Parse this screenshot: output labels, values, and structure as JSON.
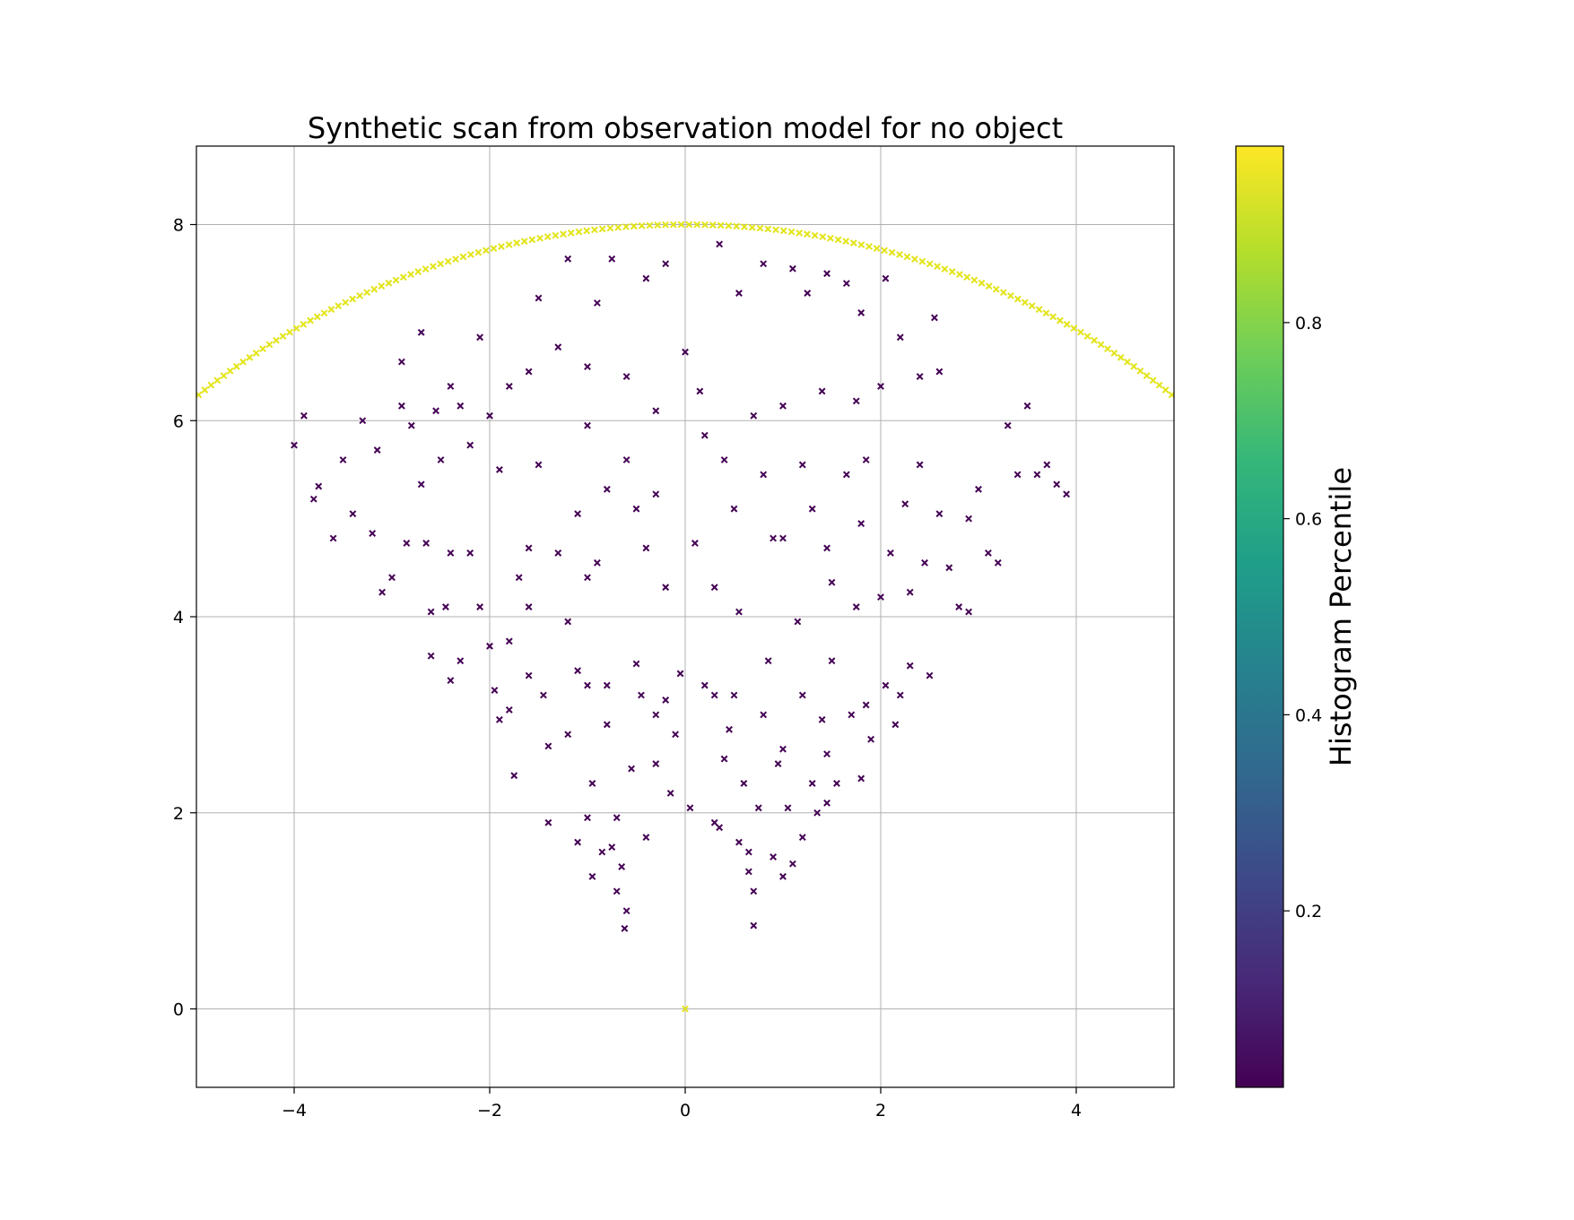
{
  "chart_data": {
    "type": "scatter",
    "title": "Synthetic scan from observation model for no object",
    "xlabel": "",
    "ylabel": "",
    "xlim": [
      -5,
      5
    ],
    "ylim": [
      -0.8,
      8.8
    ],
    "grid": true,
    "marker": "x",
    "x_ticks": [
      "−4",
      "−2",
      "0",
      "2",
      "4"
    ],
    "x_tick_values": [
      -4,
      -2,
      0,
      2,
      4
    ],
    "y_ticks": [
      "0",
      "2",
      "4",
      "6",
      "8"
    ],
    "y_tick_values": [
      0,
      2,
      4,
      6,
      8
    ],
    "colorbar": {
      "label": "Histogram Percentile",
      "colormap": "viridis",
      "range": [
        0.02,
        0.98
      ],
      "ticks": [
        "0.2",
        "0.4",
        "0.6",
        "0.8"
      ],
      "tick_values": [
        0.2,
        0.4,
        0.6,
        0.8
      ],
      "stops": [
        "#440154",
        "#482878",
        "#3e4989",
        "#31688e",
        "#26828e",
        "#1f9e89",
        "#35b779",
        "#6ece58",
        "#b5de2b",
        "#fde725"
      ]
    },
    "series": [
      {
        "description_color": "high percentile",
        "color": "#e3e419",
        "shape": "arc",
        "center": [
          0,
          0
        ],
        "radius": 8,
        "angle_start_deg": 44,
        "angle_end_deg": 136,
        "count": 160,
        "extra_points": [
          [
            0,
            0
          ]
        ]
      },
      {
        "description_color": "low percentile",
        "color": "#440154",
        "points": [
          [
            -4.0,
            5.75
          ],
          [
            -3.9,
            6.05
          ],
          [
            -3.8,
            5.2
          ],
          [
            -3.75,
            5.33
          ],
          [
            -3.6,
            4.8
          ],
          [
            -3.5,
            5.6
          ],
          [
            -3.3,
            6.0
          ],
          [
            -3.15,
            5.7
          ],
          [
            -3.1,
            4.25
          ],
          [
            -3.0,
            4.4
          ],
          [
            -2.9,
            6.15
          ],
          [
            -2.8,
            5.95
          ],
          [
            -2.7,
            5.35
          ],
          [
            -2.65,
            4.75
          ],
          [
            -2.6,
            4.05
          ],
          [
            -2.55,
            6.1
          ],
          [
            -2.5,
            5.6
          ],
          [
            -2.45,
            4.1
          ],
          [
            -2.4,
            3.35
          ],
          [
            -2.3,
            6.15
          ],
          [
            -2.2,
            5.75
          ],
          [
            -2.1,
            4.1
          ],
          [
            -2.0,
            3.7
          ],
          [
            -1.95,
            3.25
          ],
          [
            -1.9,
            2.95
          ],
          [
            -1.8,
            3.05
          ],
          [
            -1.75,
            2.38
          ],
          [
            -1.7,
            4.4
          ],
          [
            -1.6,
            4.1
          ],
          [
            -1.5,
            5.55
          ],
          [
            -1.45,
            3.2
          ],
          [
            -1.4,
            2.68
          ],
          [
            -1.3,
            4.65
          ],
          [
            -1.2,
            3.95
          ],
          [
            -1.1,
            3.45
          ],
          [
            -1.0,
            3.3
          ],
          [
            -0.95,
            2.3
          ],
          [
            -0.9,
            4.55
          ],
          [
            -0.85,
            1.6
          ],
          [
            -0.8,
            5.3
          ],
          [
            -0.7,
            1.95
          ],
          [
            -0.65,
            1.45
          ],
          [
            -0.62,
            0.82
          ],
          [
            -0.55,
            2.45
          ],
          [
            -0.5,
            3.52
          ],
          [
            -0.45,
            3.2
          ],
          [
            -0.4,
            4.7
          ],
          [
            -0.3,
            5.25
          ],
          [
            -0.2,
            3.15
          ],
          [
            -0.15,
            2.2
          ],
          [
            -0.1,
            2.8
          ],
          [
            -0.05,
            3.42
          ],
          [
            0.05,
            2.05
          ],
          [
            0.1,
            4.75
          ],
          [
            0.2,
            3.3
          ],
          [
            0.3,
            1.9
          ],
          [
            0.4,
            2.55
          ],
          [
            0.5,
            3.2
          ],
          [
            0.55,
            4.05
          ],
          [
            0.6,
            2.3
          ],
          [
            0.65,
            1.4
          ],
          [
            0.7,
            0.85
          ],
          [
            0.75,
            2.05
          ],
          [
            0.85,
            3.55
          ],
          [
            0.9,
            4.8
          ],
          [
            1.0,
            2.65
          ],
          [
            1.05,
            2.05
          ],
          [
            1.1,
            1.48
          ],
          [
            1.15,
            3.95
          ],
          [
            1.2,
            3.2
          ],
          [
            1.3,
            2.3
          ],
          [
            1.35,
            2.0
          ],
          [
            1.45,
            4.7
          ],
          [
            1.5,
            3.55
          ],
          [
            1.55,
            2.3
          ],
          [
            1.65,
            5.45
          ],
          [
            1.7,
            3.0
          ],
          [
            1.75,
            4.1
          ],
          [
            1.8,
            2.35
          ],
          [
            1.85,
            5.6
          ],
          [
            1.9,
            2.75
          ],
          [
            2.0,
            4.2
          ],
          [
            2.05,
            3.3
          ],
          [
            2.1,
            4.65
          ],
          [
            2.2,
            3.2
          ],
          [
            2.25,
            5.15
          ],
          [
            2.3,
            3.5
          ],
          [
            2.4,
            5.55
          ],
          [
            2.45,
            4.55
          ],
          [
            2.5,
            3.4
          ],
          [
            2.6,
            6.5
          ],
          [
            2.7,
            4.5
          ],
          [
            2.8,
            4.1
          ],
          [
            2.9,
            5.0
          ],
          [
            3.0,
            5.3
          ],
          [
            3.1,
            4.65
          ],
          [
            3.2,
            4.55
          ],
          [
            3.3,
            5.95
          ],
          [
            3.4,
            5.45
          ],
          [
            3.5,
            6.15
          ],
          [
            3.6,
            5.45
          ],
          [
            3.7,
            5.55
          ],
          [
            3.8,
            5.35
          ],
          [
            3.9,
            5.25
          ],
          [
            -2.0,
            6.05
          ],
          [
            -1.8,
            6.35
          ],
          [
            -1.6,
            6.5
          ],
          [
            -1.5,
            7.25
          ],
          [
            -1.3,
            6.75
          ],
          [
            -1.2,
            7.65
          ],
          [
            -1.0,
            6.55
          ],
          [
            -0.9,
            7.2
          ],
          [
            -0.75,
            7.65
          ],
          [
            -0.6,
            6.45
          ],
          [
            -0.4,
            7.45
          ],
          [
            -0.2,
            7.6
          ],
          [
            0.0,
            6.7
          ],
          [
            0.15,
            6.3
          ],
          [
            0.35,
            7.8
          ],
          [
            0.55,
            7.3
          ],
          [
            0.8,
            7.6
          ],
          [
            1.1,
            7.55
          ],
          [
            1.25,
            7.3
          ],
          [
            1.45,
            7.5
          ],
          [
            1.65,
            7.4
          ],
          [
            1.8,
            7.1
          ],
          [
            2.05,
            7.45
          ],
          [
            2.2,
            6.85
          ],
          [
            2.4,
            6.45
          ],
          [
            2.55,
            7.05
          ],
          [
            -2.1,
            6.85
          ],
          [
            -2.4,
            6.35
          ],
          [
            -2.7,
            6.9
          ],
          [
            -2.9,
            6.6
          ],
          [
            -1.0,
            5.95
          ],
          [
            -0.3,
            6.1
          ],
          [
            0.2,
            5.85
          ],
          [
            0.7,
            6.05
          ],
          [
            1.0,
            6.15
          ],
          [
            1.4,
            6.3
          ],
          [
            1.75,
            6.2
          ],
          [
            2.0,
            6.35
          ],
          [
            -0.6,
            5.6
          ],
          [
            0.4,
            5.6
          ],
          [
            0.8,
            5.45
          ],
          [
            1.2,
            5.55
          ],
          [
            -3.4,
            5.05
          ],
          [
            -2.2,
            4.65
          ],
          [
            -1.9,
            5.5
          ],
          [
            -1.1,
            5.05
          ],
          [
            -0.5,
            5.1
          ],
          [
            0.5,
            5.1
          ],
          [
            1.3,
            5.1
          ],
          [
            1.8,
            4.95
          ],
          [
            2.6,
            5.05
          ],
          [
            -3.2,
            4.85
          ],
          [
            -2.85,
            4.75
          ],
          [
            -2.4,
            4.65
          ],
          [
            -1.6,
            4.7
          ],
          [
            -1.0,
            4.4
          ],
          [
            -0.2,
            4.3
          ],
          [
            0.3,
            4.3
          ],
          [
            1.0,
            4.8
          ],
          [
            1.5,
            4.35
          ],
          [
            2.3,
            4.25
          ],
          [
            2.9,
            4.05
          ],
          [
            -2.6,
            3.6
          ],
          [
            -2.3,
            3.55
          ],
          [
            -1.8,
            3.75
          ],
          [
            -1.6,
            3.4
          ],
          [
            -0.8,
            3.3
          ],
          [
            -0.3,
            3.0
          ],
          [
            0.3,
            3.2
          ],
          [
            0.8,
            3.0
          ],
          [
            1.4,
            2.95
          ],
          [
            1.85,
            3.1
          ],
          [
            2.15,
            2.9
          ],
          [
            -1.2,
            2.8
          ],
          [
            -0.8,
            2.9
          ],
          [
            -0.3,
            2.5
          ],
          [
            0.45,
            2.85
          ],
          [
            0.95,
            2.5
          ],
          [
            1.45,
            2.6
          ],
          [
            -1.4,
            1.9
          ],
          [
            -1.1,
            1.7
          ],
          [
            -0.95,
            1.35
          ],
          [
            -0.7,
            1.2
          ],
          [
            -0.6,
            1.0
          ],
          [
            -0.4,
            1.75
          ],
          [
            0.35,
            1.85
          ],
          [
            0.55,
            1.7
          ],
          [
            0.7,
            1.2
          ],
          [
            0.9,
            1.55
          ],
          [
            1.2,
            1.75
          ],
          [
            1.45,
            2.1
          ],
          [
            -1.0,
            1.95
          ],
          [
            -0.75,
            1.65
          ],
          [
            0.65,
            1.6
          ],
          [
            1.0,
            1.35
          ]
        ]
      }
    ]
  }
}
